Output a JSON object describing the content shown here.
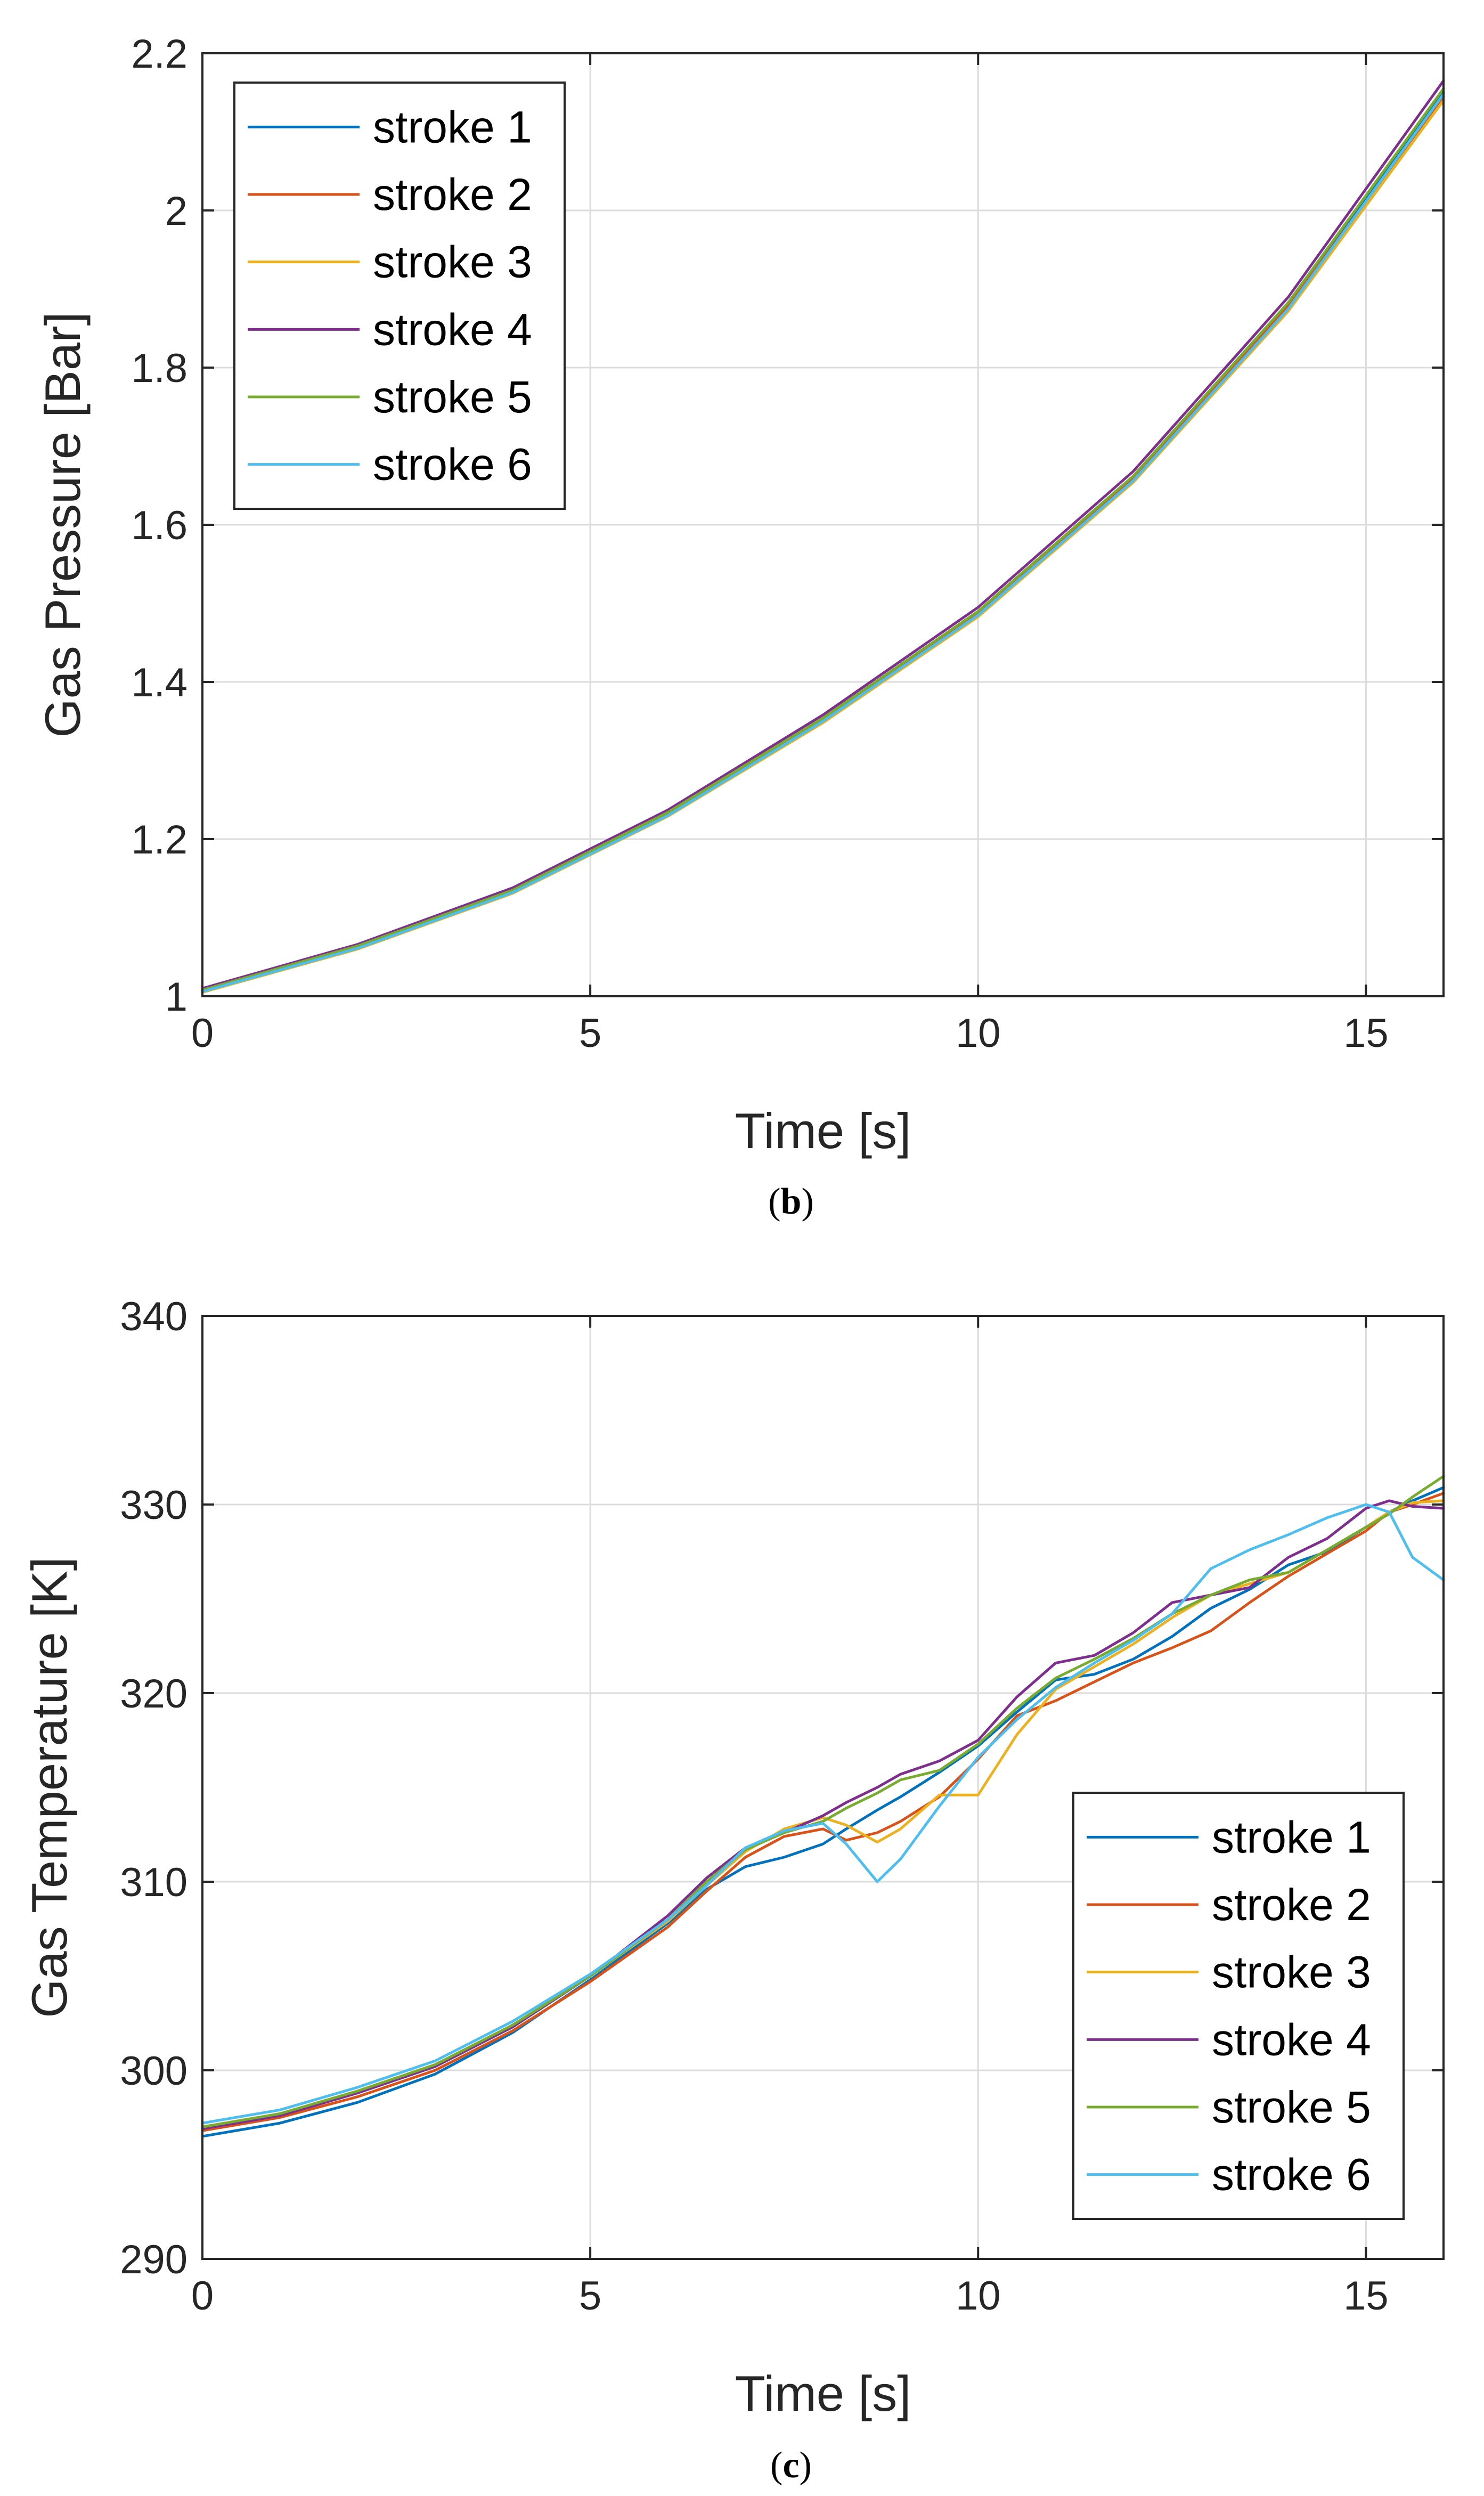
{
  "chart_data": [
    {
      "type": "line",
      "id": "pressure",
      "caption": "b",
      "xlabel": "Time [s]",
      "ylabel": "Gas Pressure [Bar]",
      "xlim": [
        0,
        16
      ],
      "ylim": [
        1,
        2.2
      ],
      "xticks": [
        0,
        5,
        10,
        15
      ],
      "yticks": [
        1,
        1.2,
        1.4,
        1.6,
        1.8,
        2,
        2.2
      ],
      "xtick_labels": [
        "0",
        "5",
        "10",
        "15"
      ],
      "ytick_labels": [
        "1",
        "1.2",
        "1.4",
        "1.6",
        "1.8",
        "2",
        "2.2"
      ],
      "grid": true,
      "legend_position": "top-left",
      "x": [
        0,
        2,
        4,
        6,
        8,
        10,
        12,
        14,
        16
      ],
      "series": [
        {
          "name": "stroke 1",
          "color": "#0072BD",
          "values": [
            1.007,
            1.063,
            1.134,
            1.233,
            1.352,
            1.488,
            1.66,
            1.88,
            2.15
          ]
        },
        {
          "name": "stroke 2",
          "color": "#D95319",
          "values": [
            1.006,
            1.062,
            1.133,
            1.232,
            1.351,
            1.487,
            1.658,
            1.878,
            2.145
          ]
        },
        {
          "name": "stroke 3",
          "color": "#EDB120",
          "values": [
            1.005,
            1.06,
            1.131,
            1.229,
            1.348,
            1.483,
            1.654,
            1.872,
            2.14
          ]
        },
        {
          "name": "stroke 4",
          "color": "#7E2F8E",
          "values": [
            1.01,
            1.066,
            1.138,
            1.237,
            1.358,
            1.495,
            1.668,
            1.89,
            2.165
          ]
        },
        {
          "name": "stroke 5",
          "color": "#77AC30",
          "values": [
            1.008,
            1.064,
            1.135,
            1.234,
            1.354,
            1.49,
            1.662,
            1.883,
            2.155
          ]
        },
        {
          "name": "stroke 6",
          "color": "#4DBEEE",
          "values": [
            1.006,
            1.061,
            1.132,
            1.23,
            1.35,
            1.485,
            1.656,
            1.875,
            2.148
          ]
        }
      ]
    },
    {
      "type": "line",
      "id": "temperature",
      "caption": "c",
      "xlabel": "Time [s]",
      "ylabel": "Gas Temperature [K]",
      "xlim": [
        0,
        16
      ],
      "ylim": [
        290,
        340
      ],
      "xticks": [
        0,
        5,
        10,
        15
      ],
      "yticks": [
        290,
        300,
        310,
        320,
        330,
        340
      ],
      "xtick_labels": [
        "0",
        "5",
        "10",
        "15"
      ],
      "ytick_labels": [
        "290",
        "300",
        "310",
        "320",
        "330",
        "340"
      ],
      "grid": true,
      "legend_position": "bottom-right",
      "x": [
        0,
        1,
        2,
        3,
        4,
        5,
        6,
        6.5,
        7,
        7.5,
        8,
        8.3,
        8.7,
        9,
        9.5,
        10,
        10.5,
        11,
        11.5,
        12,
        12.5,
        13,
        13.5,
        14,
        14.5,
        15,
        15.3,
        15.6,
        16
      ],
      "series": [
        {
          "name": "stroke 1",
          "color": "#0072BD",
          "values": [
            296.5,
            297.2,
            298.3,
            299.8,
            302.0,
            304.8,
            307.8,
            309.6,
            310.8,
            311.3,
            312.0,
            312.8,
            313.8,
            314.5,
            315.8,
            317.2,
            319.0,
            320.7,
            321.0,
            321.8,
            323.0,
            324.5,
            325.5,
            326.8,
            327.5,
            328.8,
            329.6,
            330.2,
            330.9
          ]
        },
        {
          "name": "stroke 2",
          "color": "#D95319",
          "values": [
            296.8,
            297.5,
            298.6,
            300.0,
            302.1,
            304.7,
            307.6,
            309.5,
            311.3,
            312.4,
            312.8,
            312.2,
            312.6,
            313.2,
            314.5,
            316.5,
            318.8,
            319.6,
            320.6,
            321.6,
            322.4,
            323.3,
            324.8,
            326.2,
            327.4,
            328.6,
            329.6,
            330.0,
            330.6
          ]
        },
        {
          "name": "stroke 3",
          "color": "#EDB120",
          "values": [
            297.0,
            297.7,
            298.9,
            300.3,
            302.4,
            305.0,
            307.9,
            309.8,
            311.6,
            312.8,
            313.4,
            313.0,
            312.1,
            312.8,
            314.6,
            314.6,
            317.8,
            320.2,
            321.4,
            322.6,
            324.0,
            325.2,
            325.8,
            326.4,
            327.6,
            328.8,
            329.6,
            330.1,
            330.2
          ]
        },
        {
          "name": "stroke 4",
          "color": "#7E2F8E",
          "values": [
            296.9,
            297.6,
            298.8,
            300.2,
            302.3,
            305.0,
            308.2,
            310.2,
            311.8,
            312.6,
            313.5,
            314.2,
            315.0,
            315.7,
            316.4,
            317.5,
            319.8,
            321.6,
            322.0,
            323.2,
            324.8,
            325.2,
            325.6,
            327.2,
            328.2,
            329.8,
            330.2,
            329.9,
            329.8
          ]
        },
        {
          "name": "stroke 5",
          "color": "#77AC30",
          "values": [
            297.0,
            297.7,
            298.9,
            300.3,
            302.4,
            305.0,
            308.0,
            310.0,
            311.7,
            312.6,
            313.2,
            313.9,
            314.7,
            315.4,
            315.9,
            317.3,
            319.2,
            320.8,
            321.8,
            322.9,
            324.2,
            325.2,
            326.0,
            326.4,
            327.6,
            328.8,
            329.5,
            330.4,
            331.5
          ]
        },
        {
          "name": "stroke 6",
          "color": "#4DBEEE",
          "values": [
            297.2,
            297.9,
            299.1,
            300.5,
            302.6,
            305.1,
            308.0,
            309.8,
            311.8,
            312.7,
            313.1,
            312.0,
            310.0,
            311.2,
            314.0,
            316.6,
            318.6,
            320.3,
            321.6,
            322.8,
            324.2,
            326.6,
            327.6,
            328.4,
            329.3,
            330.0,
            329.6,
            327.2,
            326.0
          ]
        }
      ]
    }
  ]
}
